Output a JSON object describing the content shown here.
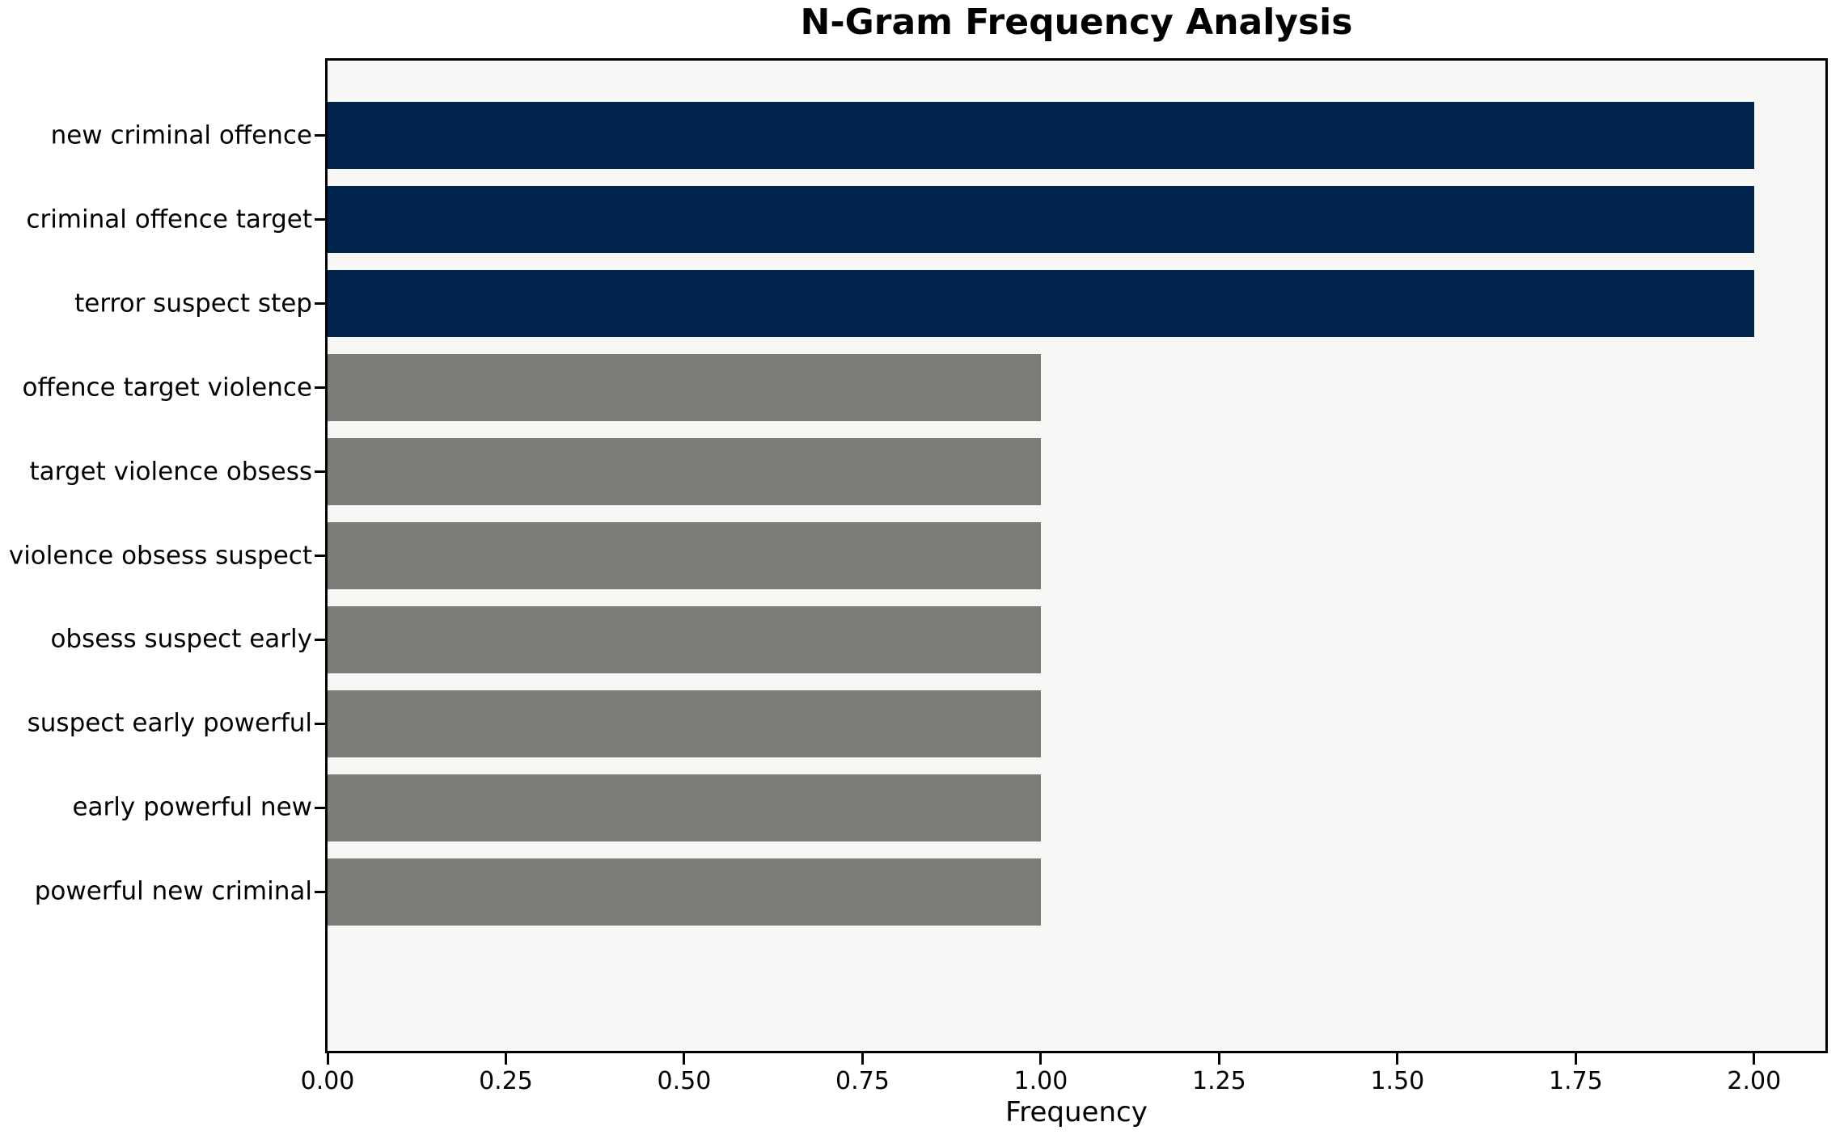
{
  "chart_data": {
    "type": "bar",
    "orientation": "horizontal",
    "title": "N-Gram Frequency Analysis",
    "xlabel": "Frequency",
    "ylabel": "",
    "categories": [
      "new criminal offence",
      "criminal offence target",
      "terror suspect step",
      "offence target violence",
      "target violence obsess",
      "violence obsess suspect",
      "obsess suspect early",
      "suspect early powerful",
      "early powerful new",
      "powerful new criminal"
    ],
    "values": [
      2,
      2,
      2,
      1,
      1,
      1,
      1,
      1,
      1,
      1
    ],
    "bar_colors": [
      "#02254d",
      "#02254d",
      "#02254d",
      "#7b7b78",
      "#7b7b78",
      "#7b7b78",
      "#7b7b78",
      "#7b7b78",
      "#7b7b78",
      "#7b7b78"
    ],
    "xlim": [
      0,
      2.1
    ],
    "xticks": [
      0,
      0.25,
      0.5,
      0.75,
      1.0,
      1.25,
      1.5,
      1.75,
      2.0
    ],
    "xtick_labels": [
      "0.00",
      "0.25",
      "0.50",
      "0.75",
      "1.00",
      "1.25",
      "1.50",
      "1.75",
      "2.00"
    ],
    "grid": false,
    "legend": null,
    "colors": {
      "highlight": "#02254d",
      "base": "#7b7b78",
      "plot_background": "#f7f7f6",
      "figure_background": "#ffffff",
      "text": "#000000"
    }
  }
}
